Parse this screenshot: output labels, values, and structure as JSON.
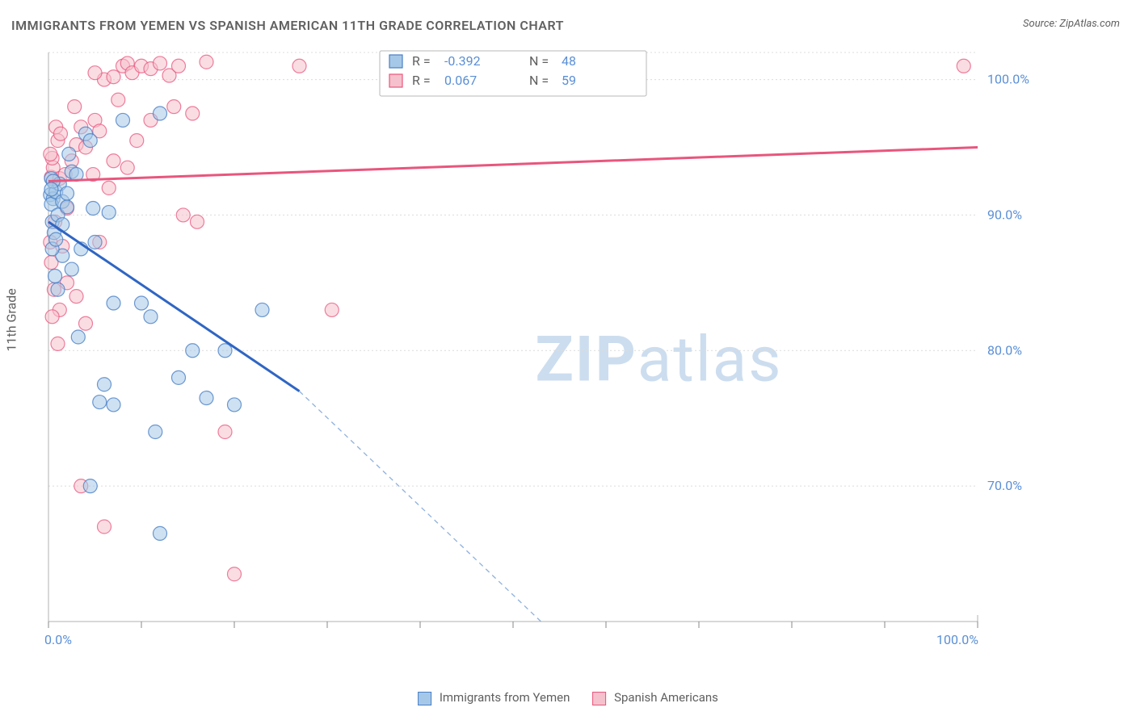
{
  "title": "IMMIGRANTS FROM YEMEN VS SPANISH AMERICAN 11TH GRADE CORRELATION CHART",
  "source": "Source: ZipAtlas.com",
  "ylabel": "11th Grade",
  "watermark_bold": "ZIP",
  "watermark_rest": "atlas",
  "chart": {
    "type": "scatter",
    "xlim": [
      0,
      100
    ],
    "ylim": [
      60,
      102
    ],
    "x_ticks": [
      0,
      10,
      20,
      30,
      40,
      50,
      60,
      70,
      80,
      90,
      100
    ],
    "x_tick_labels": {
      "0": "0.0%",
      "100": "100.0%"
    },
    "y_ticks": [
      70,
      80,
      90,
      100
    ],
    "y_tick_labels": {
      "70": "70.0%",
      "80": "80.0%",
      "90": "90.0%",
      "100": "100.0%"
    },
    "grid_color": "#dcdcdc",
    "axis_color": "#b0b0b0",
    "background": "#ffffff",
    "marker_radius": 8.5,
    "series": [
      {
        "name": "Immigrants from Yemen",
        "color_fill": "#a6c8e8",
        "color_stroke": "#4a7fc6",
        "R": "-0.392",
        "N": "48",
        "trend": {
          "x1": 0,
          "y1": 89.5,
          "x2_solid": 27,
          "y2_solid": 77,
          "x2": 53,
          "y2": 60
        },
        "points": [
          [
            0.2,
            91.5
          ],
          [
            0.5,
            91.2
          ],
          [
            0.3,
            90.8
          ],
          [
            0.8,
            91.7
          ],
          [
            0.4,
            89.5
          ],
          [
            0.6,
            88.7
          ],
          [
            0.3,
            92.7
          ],
          [
            1.2,
            92.3
          ],
          [
            0.5,
            92.5
          ],
          [
            1.5,
            91.0
          ],
          [
            1.0,
            90.0
          ],
          [
            2.0,
            90.6
          ],
          [
            2.5,
            93.2
          ],
          [
            3.0,
            93.0
          ],
          [
            4.0,
            96.0
          ],
          [
            4.5,
            95.5
          ],
          [
            2.2,
            94.5
          ],
          [
            1.5,
            87.0
          ],
          [
            0.4,
            87.5
          ],
          [
            0.7,
            85.5
          ],
          [
            1.0,
            84.5
          ],
          [
            2.5,
            86.0
          ],
          [
            3.5,
            87.5
          ],
          [
            4.8,
            90.5
          ],
          [
            5.0,
            88.0
          ],
          [
            6.5,
            90.2
          ],
          [
            7.0,
            83.5
          ],
          [
            8.0,
            97.0
          ],
          [
            10.0,
            83.5
          ],
          [
            11.0,
            82.5
          ],
          [
            12.0,
            97.5
          ],
          [
            14.0,
            78.0
          ],
          [
            15.5,
            80.0
          ],
          [
            17.0,
            76.5
          ],
          [
            19.0,
            80.0
          ],
          [
            23.0,
            83.0
          ],
          [
            3.2,
            81.0
          ],
          [
            6.0,
            77.5
          ],
          [
            7.0,
            76.0
          ],
          [
            5.5,
            76.2
          ],
          [
            11.5,
            74.0
          ],
          [
            20.0,
            76.0
          ],
          [
            4.5,
            70.0
          ],
          [
            12.0,
            66.5
          ],
          [
            1.5,
            89.3
          ],
          [
            0.8,
            88.2
          ],
          [
            2.0,
            91.6
          ],
          [
            0.3,
            91.9
          ]
        ]
      },
      {
        "name": "Spanish Americans",
        "color_fill": "#f5c1cc",
        "color_stroke": "#e8567d",
        "R": "0.067",
        "N": "59",
        "trend": {
          "x1": 0,
          "y1": 92.5,
          "x2": 100,
          "y2": 95.0
        },
        "points": [
          [
            0.3,
            92.8
          ],
          [
            0.5,
            93.5
          ],
          [
            0.4,
            94.2
          ],
          [
            1.0,
            95.5
          ],
          [
            1.2,
            92.7
          ],
          [
            1.8,
            93.0
          ],
          [
            0.7,
            89.5
          ],
          [
            0.2,
            88.0
          ],
          [
            0.3,
            86.5
          ],
          [
            1.5,
            87.7
          ],
          [
            2.5,
            94.0
          ],
          [
            3.0,
            95.2
          ],
          [
            3.5,
            96.5
          ],
          [
            4.0,
            95.0
          ],
          [
            5.0,
            97.0
          ],
          [
            5.5,
            96.2
          ],
          [
            6.0,
            100.0
          ],
          [
            7.0,
            100.2
          ],
          [
            7.5,
            98.5
          ],
          [
            8.0,
            101.0
          ],
          [
            8.5,
            101.2
          ],
          [
            9.0,
            100.5
          ],
          [
            10.0,
            101.0
          ],
          [
            11.0,
            100.8
          ],
          [
            12.0,
            101.2
          ],
          [
            13.0,
            100.3
          ],
          [
            13.5,
            98.0
          ],
          [
            14.0,
            101.0
          ],
          [
            15.5,
            97.5
          ],
          [
            17.0,
            101.3
          ],
          [
            27.0,
            101.0
          ],
          [
            98.5,
            101.0
          ],
          [
            2.0,
            85.0
          ],
          [
            3.0,
            84.0
          ],
          [
            4.0,
            82.0
          ],
          [
            0.6,
            84.5
          ],
          [
            1.2,
            83.0
          ],
          [
            0.4,
            82.5
          ],
          [
            1.0,
            80.5
          ],
          [
            14.5,
            90.0
          ],
          [
            5.5,
            88.0
          ],
          [
            7.0,
            94.0
          ],
          [
            9.5,
            95.5
          ],
          [
            11.0,
            97.0
          ],
          [
            3.5,
            70.0
          ],
          [
            6.0,
            67.0
          ],
          [
            19.0,
            74.0
          ],
          [
            30.5,
            83.0
          ],
          [
            20.0,
            63.5
          ],
          [
            2.0,
            90.5
          ],
          [
            0.8,
            96.5
          ],
          [
            1.3,
            96.0
          ],
          [
            2.8,
            98.0
          ],
          [
            4.8,
            93.0
          ],
          [
            6.5,
            92.0
          ],
          [
            8.5,
            93.5
          ],
          [
            5.0,
            100.5
          ],
          [
            16.0,
            89.5
          ],
          [
            0.2,
            94.5
          ]
        ]
      }
    ]
  },
  "correlation_legend": {
    "rows": [
      {
        "swatch": "blue",
        "R_label": "R =",
        "R": "-0.392",
        "N_label": "N =",
        "N": "48"
      },
      {
        "swatch": "pink",
        "R_label": "R =",
        "R": "0.067",
        "N_label": "N =",
        "N": "59"
      }
    ]
  },
  "bottom_legend": {
    "series1": "Immigrants from Yemen",
    "series2": "Spanish Americans"
  }
}
